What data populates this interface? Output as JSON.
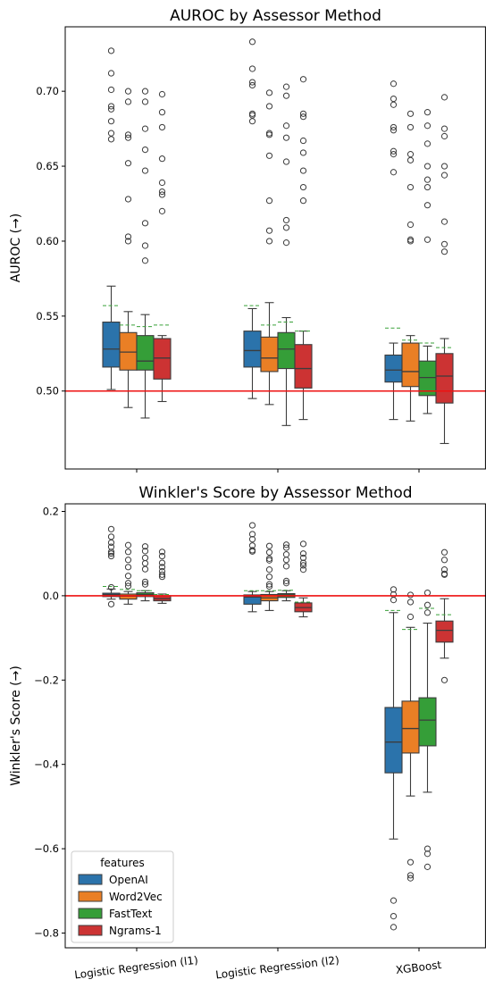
{
  "colors": {
    "OpenAI": "#2b73ab",
    "Word2Vec": "#ea7f25",
    "FastText": "#359e38",
    "Ngrams-1": "#cc3333",
    "reference_line": "#ee1111",
    "mean_line": "#39a139"
  },
  "legend": {
    "title": "features",
    "placement": "lower-left (bottom panel)",
    "entries": [
      "OpenAI",
      "Word2Vec",
      "FastText",
      "Ngrams-1"
    ]
  },
  "chart_data": [
    {
      "type": "box",
      "title": "AUROC by Assessor Method",
      "xlabel": "",
      "ylabel": "AUROC (→)",
      "ylim": [
        0.448,
        0.743
      ],
      "yticks": [
        0.5,
        0.55,
        0.6,
        0.65,
        0.7
      ],
      "ytick_labels": [
        "0.50",
        "0.55",
        "0.60",
        "0.65",
        "0.70"
      ],
      "reference_line": 0.5,
      "categories": [
        "Logistic Regression (l1)",
        "Logistic Regression (l2)",
        "XGBoost"
      ],
      "show_x_tick_labels": false,
      "series": [
        {
          "name": "OpenAI",
          "boxes": [
            {
              "q1": 0.516,
              "median": 0.528,
              "q3": 0.546,
              "whislo": 0.501,
              "whishi": 0.57,
              "mean": 0.557,
              "fliers": [
                0.727,
                0.712,
                0.701,
                0.69,
                0.688,
                0.68,
                0.672,
                0.668
              ]
            },
            {
              "q1": 0.516,
              "median": 0.527,
              "q3": 0.54,
              "whislo": 0.495,
              "whishi": 0.555,
              "mean": 0.557,
              "fliers": [
                0.733,
                0.715,
                0.706,
                0.704,
                0.685,
                0.684,
                0.68
              ]
            },
            {
              "q1": 0.506,
              "median": 0.514,
              "q3": 0.524,
              "whislo": 0.481,
              "whishi": 0.532,
              "mean": 0.542,
              "fliers": [
                0.705,
                0.695,
                0.691,
                0.676,
                0.674,
                0.66,
                0.658,
                0.646
              ]
            }
          ]
        },
        {
          "name": "Word2Vec",
          "boxes": [
            {
              "q1": 0.514,
              "median": 0.526,
              "q3": 0.539,
              "whislo": 0.489,
              "whishi": 0.553,
              "mean": 0.544,
              "fliers": [
                0.7,
                0.693,
                0.671,
                0.669,
                0.652,
                0.628,
                0.603,
                0.6
              ]
            },
            {
              "q1": 0.513,
              "median": 0.522,
              "q3": 0.536,
              "whislo": 0.491,
              "whishi": 0.559,
              "mean": 0.544,
              "fliers": [
                0.699,
                0.69,
                0.672,
                0.671,
                0.657,
                0.627,
                0.607,
                0.6
              ]
            },
            {
              "q1": 0.503,
              "median": 0.513,
              "q3": 0.532,
              "whislo": 0.48,
              "whishi": 0.537,
              "mean": 0.534,
              "fliers": [
                0.685,
                0.676,
                0.658,
                0.654,
                0.636,
                0.611,
                0.601,
                0.6
              ]
            }
          ]
        },
        {
          "name": "FastText",
          "boxes": [
            {
              "q1": 0.514,
              "median": 0.52,
              "q3": 0.537,
              "whislo": 0.482,
              "whishi": 0.551,
              "mean": 0.543,
              "fliers": [
                0.7,
                0.693,
                0.675,
                0.661,
                0.647,
                0.612,
                0.597,
                0.587
              ]
            },
            {
              "q1": 0.515,
              "median": 0.528,
              "q3": 0.539,
              "whislo": 0.477,
              "whishi": 0.549,
              "mean": 0.546,
              "fliers": [
                0.703,
                0.697,
                0.677,
                0.669,
                0.653,
                0.614,
                0.609,
                0.599
              ]
            },
            {
              "q1": 0.497,
              "median": 0.509,
              "q3": 0.52,
              "whislo": 0.485,
              "whishi": 0.53,
              "mean": 0.532,
              "fliers": [
                0.686,
                0.677,
                0.665,
                0.65,
                0.641,
                0.636,
                0.624,
                0.601
              ]
            }
          ]
        },
        {
          "name": "Ngrams-1",
          "boxes": [
            {
              "q1": 0.508,
              "median": 0.522,
              "q3": 0.535,
              "whislo": 0.493,
              "whishi": 0.537,
              "mean": 0.544,
              "fliers": [
                0.698,
                0.686,
                0.676,
                0.655,
                0.639,
                0.633,
                0.631,
                0.62
              ]
            },
            {
              "q1": 0.502,
              "median": 0.515,
              "q3": 0.531,
              "whislo": 0.481,
              "whishi": 0.54,
              "mean": 0.54,
              "fliers": [
                0.708,
                0.685,
                0.683,
                0.667,
                0.659,
                0.647,
                0.636,
                0.627
              ]
            },
            {
              "q1": 0.492,
              "median": 0.51,
              "q3": 0.525,
              "whislo": 0.465,
              "whishi": 0.535,
              "mean": 0.529,
              "fliers": [
                0.696,
                0.675,
                0.67,
                0.65,
                0.644,
                0.613,
                0.598,
                0.593
              ]
            }
          ]
        }
      ]
    },
    {
      "type": "box",
      "title": "Winkler's Score by Assessor Method",
      "xlabel": "",
      "ylabel": "Winkler's Score (→)",
      "ylim": [
        -0.835,
        0.218
      ],
      "yticks": [
        -0.8,
        -0.6,
        -0.4,
        -0.2,
        0.0,
        0.2
      ],
      "ytick_labels": [
        "−0.8",
        "−0.6",
        "−0.4",
        "−0.2",
        "0.0",
        "0.2"
      ],
      "reference_line": 0.0,
      "categories": [
        "Logistic Regression (l1)",
        "Logistic Regression (l2)",
        "XGBoost"
      ],
      "show_x_tick_labels": true,
      "series": [
        {
          "name": "OpenAI",
          "boxes": [
            {
              "q1": -0.002,
              "median": 0.003,
              "q3": 0.006,
              "whislo": -0.008,
              "whishi": 0.016,
              "mean": 0.022,
              "fliers": [
                0.158,
                0.14,
                0.126,
                0.116,
                0.104,
                0.1,
                0.094,
                0.02,
                -0.02
              ]
            },
            {
              "q1": -0.02,
              "median": -0.003,
              "q3": 0.002,
              "whislo": -0.038,
              "whishi": 0.01,
              "mean": 0.012,
              "fliers": [
                0.167,
                0.146,
                0.134,
                0.119,
                0.108,
                0.105
              ]
            },
            {
              "q1": -0.42,
              "median": -0.347,
              "q3": -0.265,
              "whislo": -0.577,
              "whishi": -0.04,
              "mean": -0.035,
              "fliers": [
                0.015,
                0.003,
                -0.01,
                -0.723,
                -0.76,
                -0.786
              ]
            }
          ]
        },
        {
          "name": "Word2Vec",
          "boxes": [
            {
              "q1": -0.008,
              "median": -0.001,
              "q3": 0.004,
              "whislo": -0.02,
              "whishi": 0.01,
              "mean": 0.015,
              "fliers": [
                0.12,
                0.104,
                0.085,
                0.068,
                0.047,
                0.03,
                0.023
              ]
            },
            {
              "q1": -0.012,
              "median": -0.005,
              "q3": 0.003,
              "whislo": -0.035,
              "whishi": 0.01,
              "mean": 0.012,
              "fliers": [
                0.118,
                0.103,
                0.088,
                0.084,
                0.062,
                0.045,
                0.027,
                0.022
              ]
            },
            {
              "q1": -0.373,
              "median": -0.315,
              "q3": -0.25,
              "whislo": -0.475,
              "whishi": -0.075,
              "mean": -0.08,
              "fliers": [
                0.002,
                -0.015,
                -0.05,
                -0.632,
                -0.663,
                -0.67
              ]
            }
          ]
        },
        {
          "name": "FastText",
          "boxes": [
            {
              "q1": -0.002,
              "median": 0.003,
              "q3": 0.007,
              "whislo": -0.012,
              "whishi": 0.012,
              "mean": 0.012,
              "fliers": [
                0.117,
                0.106,
                0.09,
                0.077,
                0.063,
                0.033,
                0.027
              ]
            },
            {
              "q1": -0.004,
              "median": 0.002,
              "q3": 0.005,
              "whislo": -0.012,
              "whishi": 0.012,
              "mean": 0.013,
              "fliers": [
                0.121,
                0.114,
                0.098,
                0.085,
                0.07,
                0.035,
                0.03
              ]
            },
            {
              "q1": -0.356,
              "median": -0.295,
              "q3": -0.242,
              "whislo": -0.466,
              "whishi": -0.065,
              "mean": -0.03,
              "fliers": [
                0.007,
                -0.022,
                -0.04,
                -0.6,
                -0.612,
                -0.643
              ]
            }
          ]
        },
        {
          "name": "Ngrams-1",
          "boxes": [
            {
              "q1": -0.012,
              "median": -0.007,
              "q3": 0.0,
              "whislo": -0.018,
              "whishi": 0.004,
              "mean": 0.003,
              "fliers": [
                0.104,
                0.094,
                0.078,
                0.068,
                0.058,
                0.05,
                0.045
              ]
            },
            {
              "q1": -0.038,
              "median": -0.028,
              "q3": -0.017,
              "whislo": -0.05,
              "whishi": -0.005,
              "mean": -0.015,
              "fliers": [
                0.123,
                0.1,
                0.09,
                0.078,
                0.072,
                0.062
              ]
            },
            {
              "q1": -0.11,
              "median": -0.082,
              "q3": -0.06,
              "whislo": -0.148,
              "whishi": -0.007,
              "mean": -0.045,
              "fliers": [
                0.103,
                0.085,
                0.062,
                0.052,
                0.05,
                -0.2
              ]
            }
          ]
        }
      ]
    }
  ]
}
